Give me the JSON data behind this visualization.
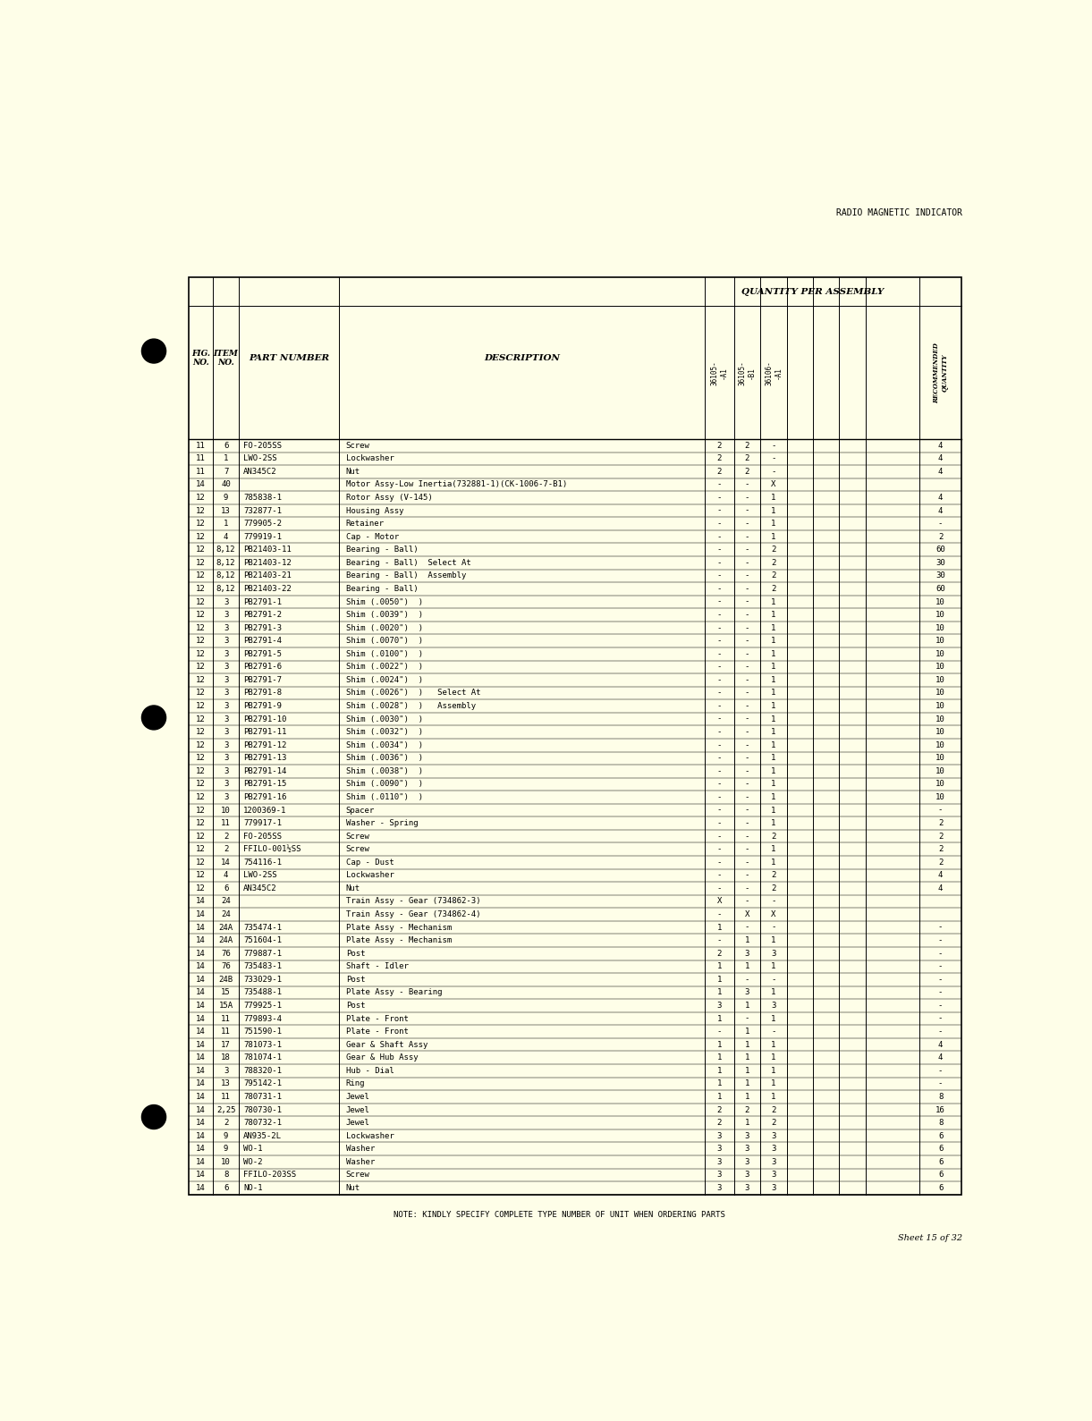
{
  "page_title": "RADIO MAGNETIC INDICATOR",
  "footer_note": "NOTE: KINDLY SPECIFY COMPLETE TYPE NUMBER OF UNIT WHEN ORDERING PARTS",
  "sheet_info": "Sheet 15 of 32",
  "background_color": "#FEFEE8",
  "qty_header": "QUANTITY PER ASSEMBLY",
  "rows": [
    [
      "11",
      "6",
      "FO-205SS",
      "Screw",
      "2",
      "2",
      "-",
      "",
      "",
      "",
      "4"
    ],
    [
      "11",
      "1",
      "LWO-2SS",
      "Lockwasher",
      "2",
      "2",
      "-",
      "",
      "",
      "",
      "4"
    ],
    [
      "11",
      "7",
      "AN345C2",
      "Nut",
      "2",
      "2",
      "-",
      "",
      "",
      "",
      "4"
    ],
    [
      "14",
      "40",
      "",
      "Motor Assy-Low Inertia(732881-1)(CK-1006-7-B1)",
      "-",
      "-",
      "X",
      "",
      "",
      "",
      ""
    ],
    [
      "12",
      "9",
      "785838-1",
      "Rotor Assy (V-145)",
      "-",
      "-",
      "1",
      "",
      "",
      "",
      "4"
    ],
    [
      "12",
      "13",
      "732877-1",
      "Housing Assy",
      "-",
      "-",
      "1",
      "",
      "",
      "",
      "4"
    ],
    [
      "12",
      "1",
      "779905-2",
      "Retainer",
      "-",
      "-",
      "1",
      "",
      "",
      "",
      "-"
    ],
    [
      "12",
      "4",
      "779919-1",
      "Cap - Motor",
      "-",
      "-",
      "1",
      "",
      "",
      "",
      "2"
    ],
    [
      "12",
      "8,12",
      "PB21403-11",
      "Bearing - Ball)",
      "-",
      "-",
      "2",
      "",
      "",
      "",
      "60"
    ],
    [
      "12",
      "8,12",
      "PB21403-12",
      "Bearing - Ball)  Select At",
      "-",
      "-",
      "2",
      "",
      "",
      "",
      "30"
    ],
    [
      "12",
      "8,12",
      "PB21403-21",
      "Bearing - Ball)  Assembly",
      "-",
      "-",
      "2",
      "",
      "",
      "",
      "30"
    ],
    [
      "12",
      "8,12",
      "PB21403-22",
      "Bearing - Ball)",
      "-",
      "-",
      "2",
      "",
      "",
      "",
      "60"
    ],
    [
      "12",
      "3",
      "PB2791-1",
      "Shim (.0050\")  )",
      "-",
      "-",
      "1",
      "",
      "",
      "",
      "10"
    ],
    [
      "12",
      "3",
      "PB2791-2",
      "Shim (.0039\")  )",
      "-",
      "-",
      "1",
      "",
      "",
      "",
      "10"
    ],
    [
      "12",
      "3",
      "PB2791-3",
      "Shim (.0020\")  )",
      "-",
      "-",
      "1",
      "",
      "",
      "",
      "10"
    ],
    [
      "12",
      "3",
      "PB2791-4",
      "Shim (.0070\")  )",
      "-",
      "-",
      "1",
      "",
      "",
      "",
      "10"
    ],
    [
      "12",
      "3",
      "PB2791-5",
      "Shim (.0100\")  )",
      "-",
      "-",
      "1",
      "",
      "",
      "",
      "10"
    ],
    [
      "12",
      "3",
      "PB2791-6",
      "Shim (.0022\")  )",
      "-",
      "-",
      "1",
      "",
      "",
      "",
      "10"
    ],
    [
      "12",
      "3",
      "PB2791-7",
      "Shim (.0024\")  )",
      "-",
      "-",
      "1",
      "",
      "",
      "",
      "10"
    ],
    [
      "12",
      "3",
      "PB2791-8",
      "Shim (.0026\")  )   Select At",
      "-",
      "-",
      "1",
      "",
      "",
      "",
      "10"
    ],
    [
      "12",
      "3",
      "PB2791-9",
      "Shim (.0028\")  )   Assembly",
      "-",
      "-",
      "1",
      "",
      "",
      "",
      "10"
    ],
    [
      "12",
      "3",
      "PB2791-10",
      "Shim (.0030\")  )",
      "-",
      "-",
      "1",
      "",
      "",
      "",
      "10"
    ],
    [
      "12",
      "3",
      "PB2791-11",
      "Shim (.0032\")  )",
      "-",
      "-",
      "1",
      "",
      "",
      "",
      "10"
    ],
    [
      "12",
      "3",
      "PB2791-12",
      "Shim (.0034\")  )",
      "-",
      "-",
      "1",
      "",
      "",
      "",
      "10"
    ],
    [
      "12",
      "3",
      "PB2791-13",
      "Shim (.0036\")  )",
      "-",
      "-",
      "1",
      "",
      "",
      "",
      "10"
    ],
    [
      "12",
      "3",
      "PB2791-14",
      "Shim (.0038\")  )",
      "-",
      "-",
      "1",
      "",
      "",
      "",
      "10"
    ],
    [
      "12",
      "3",
      "PB2791-15",
      "Shim (.0090\")  )",
      "-",
      "-",
      "1",
      "",
      "",
      "",
      "10"
    ],
    [
      "12",
      "3",
      "PB2791-16",
      "Shim (.0110\")  )",
      "-",
      "-",
      "1",
      "",
      "",
      "",
      "10"
    ],
    [
      "12",
      "10",
      "1200369-1",
      "Spacer",
      "-",
      "-",
      "1",
      "",
      "",
      "",
      "-"
    ],
    [
      "12",
      "11",
      "779917-1",
      "Washer - Spring",
      "-",
      "-",
      "1",
      "",
      "",
      "",
      "2"
    ],
    [
      "12",
      "2",
      "FO-205SS",
      "Screw",
      "-",
      "-",
      "2",
      "",
      "",
      "",
      "2"
    ],
    [
      "12",
      "2",
      "FFILO-001½SS",
      "Screw",
      "-",
      "-",
      "1",
      "",
      "",
      "",
      "2"
    ],
    [
      "12",
      "14",
      "754116-1",
      "Cap - Dust",
      "-",
      "-",
      "1",
      "",
      "",
      "",
      "2"
    ],
    [
      "12",
      "4",
      "LWO-2SS",
      "Lockwasher",
      "-",
      "-",
      "2",
      "",
      "",
      "",
      "4"
    ],
    [
      "12",
      "6",
      "AN345C2",
      "Nut",
      "-",
      "-",
      "2",
      "",
      "",
      "",
      "4"
    ],
    [
      "14",
      "24",
      "",
      "Train Assy - Gear (734862-3)",
      "X",
      "-",
      "-",
      "",
      "",
      "",
      ""
    ],
    [
      "14",
      "24",
      "",
      "Train Assy - Gear (734862-4)",
      "-",
      "X",
      "X",
      "",
      "",
      "",
      ""
    ],
    [
      "14",
      "24A",
      "735474-1",
      "Plate Assy - Mechanism",
      "1",
      "-",
      "-",
      "",
      "",
      "",
      "-"
    ],
    [
      "14",
      "24A",
      "751604-1",
      "Plate Assy - Mechanism",
      "-",
      "1",
      "1",
      "",
      "",
      "",
      "-"
    ],
    [
      "14",
      "76",
      "779887-1",
      "Post",
      "2",
      "3",
      "3",
      "",
      "",
      "",
      "-"
    ],
    [
      "14",
      "76",
      "735483-1",
      "Shaft - Idler",
      "1",
      "1",
      "1",
      "",
      "",
      "",
      "-"
    ],
    [
      "14",
      "24B",
      "733029-1",
      "Post",
      "1",
      "-",
      "-",
      "",
      "",
      "",
      "-"
    ],
    [
      "14",
      "15",
      "735488-1",
      "Plate Assy - Bearing",
      "1",
      "3",
      "1",
      "",
      "",
      "",
      "-"
    ],
    [
      "14",
      "15A",
      "779925-1",
      "Post",
      "3",
      "1",
      "3",
      "",
      "",
      "",
      "-"
    ],
    [
      "14",
      "11",
      "779893-4",
      "Plate - Front",
      "1",
      "-",
      "1",
      "",
      "",
      "",
      "-"
    ],
    [
      "14",
      "11",
      "751590-1",
      "Plate - Front",
      "-",
      "1",
      "-",
      "",
      "",
      "",
      "-"
    ],
    [
      "14",
      "17",
      "781073-1",
      "Gear & Shaft Assy",
      "1",
      "1",
      "1",
      "",
      "",
      "",
      "4"
    ],
    [
      "14",
      "18",
      "781074-1",
      "Gear & Hub Assy",
      "1",
      "1",
      "1",
      "",
      "",
      "",
      "4"
    ],
    [
      "14",
      "3",
      "788320-1",
      "Hub - Dial",
      "1",
      "1",
      "1",
      "",
      "",
      "",
      "-"
    ],
    [
      "14",
      "13",
      "795142-1",
      "Ring",
      "1",
      "1",
      "1",
      "",
      "",
      "",
      "-"
    ],
    [
      "14",
      "11",
      "780731-1",
      "Jewel",
      "1",
      "1",
      "1",
      "",
      "",
      "",
      "8"
    ],
    [
      "14",
      "2,25",
      "780730-1",
      "Jewel",
      "2",
      "2",
      "2",
      "",
      "",
      "",
      "16"
    ],
    [
      "14",
      "2",
      "780732-1",
      "Jewel",
      "2",
      "1",
      "2",
      "",
      "",
      "",
      "8"
    ],
    [
      "14",
      "9",
      "AN935-2L",
      "Lockwasher",
      "3",
      "3",
      "3",
      "",
      "",
      "",
      "6"
    ],
    [
      "14",
      "9",
      "WO-1",
      "Washer",
      "3",
      "3",
      "3",
      "",
      "",
      "",
      "6"
    ],
    [
      "14",
      "10",
      "WO-2",
      "Washer",
      "3",
      "3",
      "3",
      "",
      "",
      "",
      "6"
    ],
    [
      "14",
      "8",
      "FFILO-203SS",
      "Screw",
      "3",
      "3",
      "3",
      "",
      "",
      "",
      "6"
    ],
    [
      "14",
      "6",
      "NO-1",
      "Nut",
      "3",
      "3",
      "3",
      "",
      "",
      "",
      "6"
    ]
  ]
}
